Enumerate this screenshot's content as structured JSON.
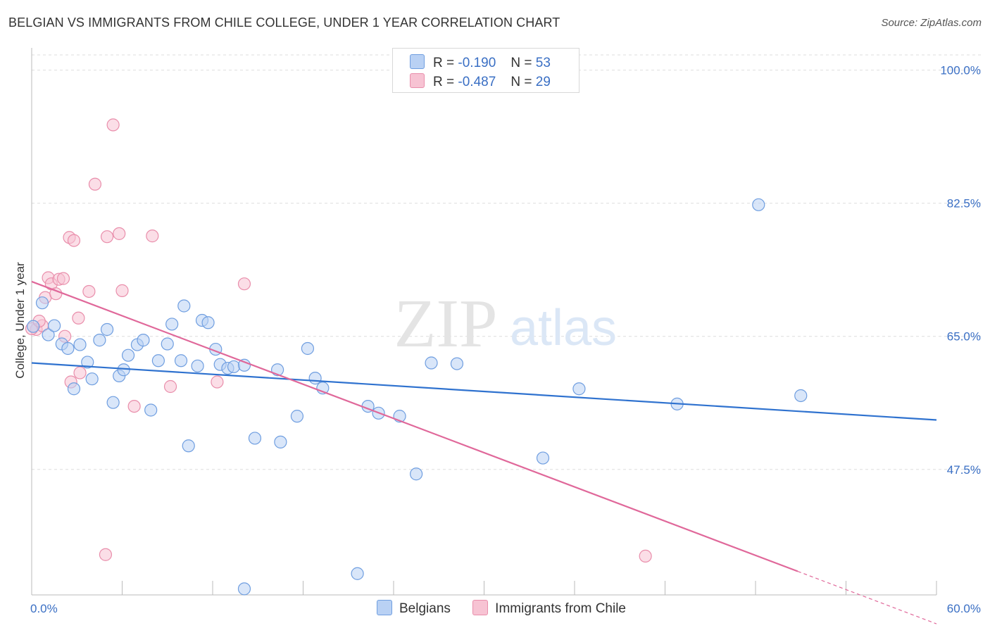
{
  "header": {
    "title": "BELGIAN VS IMMIGRANTS FROM CHILE COLLEGE, UNDER 1 YEAR CORRELATION CHART",
    "source": "Source: ZipAtlas.com"
  },
  "legend_top": {
    "rows": [
      {
        "r_label": "R =",
        "r_value": "-0.190",
        "n_label": "N =",
        "n_value": "53"
      },
      {
        "r_label": "R =",
        "r_value": "-0.487",
        "n_label": "N =",
        "n_value": "29"
      }
    ]
  },
  "legend_bottom": {
    "items": [
      {
        "label": "Belgians"
      },
      {
        "label": "Immigrants from Chile"
      }
    ]
  },
  "watermark": {
    "zip": "ZIP",
    "atlas": "atlas"
  },
  "colors": {
    "blue_fill": "#b9d1f4",
    "blue_stroke": "#6f9ee0",
    "blue_line": "#2f72cf",
    "pink_fill": "#f7c3d3",
    "pink_stroke": "#e98eab",
    "pink_line": "#e0689a",
    "grid": "#dedede",
    "tick_text": "#3a6fc4"
  },
  "chart_data": {
    "type": "scatter",
    "title": "BELGIAN VS IMMIGRANTS FROM CHILE COLLEGE, UNDER 1 YEAR CORRELATION CHART",
    "xlabel": "",
    "ylabel": "College, Under 1 year",
    "xlim": [
      0,
      60
    ],
    "ylim": [
      31,
      102
    ],
    "x_tick_labels": [
      {
        "value": 0,
        "label": "0.0%"
      },
      {
        "value": 60,
        "label": "60.0%"
      }
    ],
    "y_tick_labels": [
      {
        "value": 100,
        "label": "100.0%"
      },
      {
        "value": 82.5,
        "label": "82.5%"
      },
      {
        "value": 65,
        "label": "65.0%"
      },
      {
        "value": 47.5,
        "label": "47.5%"
      }
    ],
    "x_minor_ticks": [
      6,
      12,
      18,
      24,
      30,
      36,
      42,
      48,
      54
    ],
    "series": [
      {
        "name": "Belgians",
        "color": "#6f9ee0",
        "trend": {
          "x": [
            0,
            60
          ],
          "y": [
            61.5,
            54.0
          ]
        },
        "points": [
          {
            "x": 0.7,
            "y": 69.4
          },
          {
            "x": 1.1,
            "y": 65.2
          },
          {
            "x": 1.5,
            "y": 66.4
          },
          {
            "x": 2.0,
            "y": 64.0
          },
          {
            "x": 2.4,
            "y": 63.4
          },
          {
            "x": 2.8,
            "y": 58.1
          },
          {
            "x": 3.2,
            "y": 63.9
          },
          {
            "x": 3.7,
            "y": 61.6
          },
          {
            "x": 4.0,
            "y": 59.4
          },
          {
            "x": 4.5,
            "y": 64.5
          },
          {
            "x": 5.0,
            "y": 65.9
          },
          {
            "x": 5.4,
            "y": 56.3
          },
          {
            "x": 5.8,
            "y": 59.8
          },
          {
            "x": 6.1,
            "y": 60.6
          },
          {
            "x": 6.4,
            "y": 62.5
          },
          {
            "x": 7.0,
            "y": 63.9
          },
          {
            "x": 7.4,
            "y": 64.5
          },
          {
            "x": 7.9,
            "y": 55.3
          },
          {
            "x": 8.4,
            "y": 61.8
          },
          {
            "x": 9.0,
            "y": 64.0
          },
          {
            "x": 9.3,
            "y": 66.6
          },
          {
            "x": 9.9,
            "y": 61.8
          },
          {
            "x": 10.1,
            "y": 69.0
          },
          {
            "x": 10.4,
            "y": 50.6
          },
          {
            "x": 11.0,
            "y": 61.1
          },
          {
            "x": 11.3,
            "y": 67.1
          },
          {
            "x": 11.7,
            "y": 66.8
          },
          {
            "x": 12.2,
            "y": 63.3
          },
          {
            "x": 12.5,
            "y": 61.3
          },
          {
            "x": 13.0,
            "y": 60.8
          },
          {
            "x": 13.4,
            "y": 61.0
          },
          {
            "x": 14.1,
            "y": 61.2
          },
          {
            "x": 14.8,
            "y": 51.6
          },
          {
            "x": 16.3,
            "y": 60.6
          },
          {
            "x": 16.5,
            "y": 51.1
          },
          {
            "x": 17.6,
            "y": 54.5
          },
          {
            "x": 18.3,
            "y": 63.4
          },
          {
            "x": 18.8,
            "y": 59.5
          },
          {
            "x": 19.3,
            "y": 58.2
          },
          {
            "x": 22.3,
            "y": 55.8
          },
          {
            "x": 23.0,
            "y": 54.9
          },
          {
            "x": 24.4,
            "y": 54.5
          },
          {
            "x": 25.5,
            "y": 46.9
          },
          {
            "x": 26.5,
            "y": 61.5
          },
          {
            "x": 28.2,
            "y": 61.4
          },
          {
            "x": 33.9,
            "y": 49.0
          },
          {
            "x": 36.3,
            "y": 58.1
          },
          {
            "x": 42.8,
            "y": 56.1
          },
          {
            "x": 48.2,
            "y": 82.3
          },
          {
            "x": 51.0,
            "y": 57.2
          },
          {
            "x": 21.6,
            "y": 33.8
          },
          {
            "x": 14.1,
            "y": 31.8
          },
          {
            "x": 0.1,
            "y": 66.3
          }
        ]
      },
      {
        "name": "Immigrants from Chile",
        "color": "#e98eab",
        "trend": {
          "x": [
            0,
            50.8
          ],
          "y": [
            72.2,
            34.1
          ]
        },
        "trend_dashed": {
          "x": [
            50.8,
            60
          ],
          "y": [
            34.1,
            27.2
          ]
        },
        "points": [
          {
            "x": 0.3,
            "y": 65.9
          },
          {
            "x": 0.7,
            "y": 66.4
          },
          {
            "x": 0.9,
            "y": 70.1
          },
          {
            "x": 1.1,
            "y": 72.7
          },
          {
            "x": 1.3,
            "y": 71.9
          },
          {
            "x": 1.6,
            "y": 70.6
          },
          {
            "x": 1.8,
            "y": 72.5
          },
          {
            "x": 2.1,
            "y": 72.6
          },
          {
            "x": 2.2,
            "y": 65.0
          },
          {
            "x": 2.5,
            "y": 78.0
          },
          {
            "x": 2.6,
            "y": 59.0
          },
          {
            "x": 2.8,
            "y": 77.6
          },
          {
            "x": 3.1,
            "y": 67.4
          },
          {
            "x": 3.2,
            "y": 60.2
          },
          {
            "x": 3.8,
            "y": 70.9
          },
          {
            "x": 4.2,
            "y": 85.0
          },
          {
            "x": 4.9,
            "y": 36.3
          },
          {
            "x": 5.0,
            "y": 78.1
          },
          {
            "x": 5.4,
            "y": 92.8
          },
          {
            "x": 5.8,
            "y": 78.5
          },
          {
            "x": 6.0,
            "y": 71.0
          },
          {
            "x": 6.8,
            "y": 55.8
          },
          {
            "x": 8.0,
            "y": 78.2
          },
          {
            "x": 9.2,
            "y": 58.4
          },
          {
            "x": 12.3,
            "y": 59.0
          },
          {
            "x": 14.1,
            "y": 71.9
          },
          {
            "x": 40.7,
            "y": 36.1
          },
          {
            "x": 0.0,
            "y": 66.0
          },
          {
            "x": 0.5,
            "y": 67.0
          }
        ]
      }
    ]
  }
}
